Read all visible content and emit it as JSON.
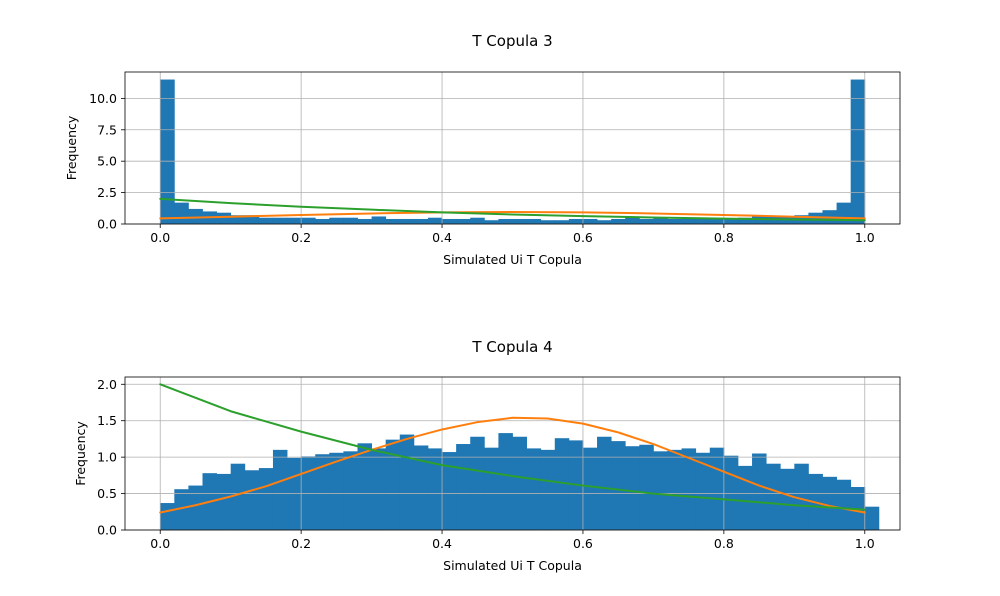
{
  "colors": {
    "bars": "#1f77b4",
    "orange_curve": "#ff7f0e",
    "green_curve": "#2ca02c",
    "grid": "#b0b0b0"
  },
  "chart_data": [
    {
      "type": "histogram",
      "title": "T Copula 3",
      "xlabel": "Simulated Ui T Copula",
      "ylabel": "Frequency",
      "xlim": [
        -0.05,
        1.05
      ],
      "ylim": [
        0,
        12.1
      ],
      "xticks": [
        0.0,
        0.2,
        0.4,
        0.6,
        0.8,
        1.0
      ],
      "xtick_labels": [
        "0.0",
        "0.2",
        "0.4",
        "0.6",
        "0.8",
        "1.0"
      ],
      "yticks": [
        0.0,
        2.5,
        5.0,
        7.5,
        10.0
      ],
      "ytick_labels": [
        "0.0",
        "2.5",
        "5.0",
        "7.5",
        "10.0"
      ],
      "grid": true,
      "bin_start": 0.0,
      "bin_width": 0.02,
      "values": [
        11.5,
        1.7,
        1.2,
        1.0,
        0.9,
        0.7,
        0.7,
        0.5,
        0.5,
        0.5,
        0.5,
        0.4,
        0.5,
        0.5,
        0.4,
        0.6,
        0.4,
        0.4,
        0.4,
        0.5,
        0.4,
        0.4,
        0.5,
        0.3,
        0.4,
        0.4,
        0.4,
        0.3,
        0.3,
        0.4,
        0.4,
        0.3,
        0.4,
        0.6,
        0.4,
        0.5,
        0.4,
        0.5,
        0.4,
        0.4,
        0.4,
        0.5,
        0.6,
        0.6,
        0.6,
        0.7,
        0.9,
        1.1,
        1.7,
        11.5
      ],
      "curves": [
        {
          "color_key": "orange_curve",
          "x": [
            0.0,
            0.1,
            0.2,
            0.3,
            0.4,
            0.5,
            0.6,
            0.7,
            0.8,
            0.9,
            1.0
          ],
          "y": [
            0.45,
            0.58,
            0.72,
            0.84,
            0.93,
            0.96,
            0.93,
            0.84,
            0.72,
            0.58,
            0.45
          ]
        },
        {
          "color_key": "green_curve",
          "x": [
            0.0,
            0.1,
            0.2,
            0.3,
            0.4,
            0.5,
            0.6,
            0.7,
            0.8,
            0.9,
            1.0
          ],
          "y": [
            2.0,
            1.66,
            1.37,
            1.14,
            0.93,
            0.76,
            0.63,
            0.52,
            0.43,
            0.36,
            0.3
          ]
        }
      ]
    },
    {
      "type": "histogram",
      "title": "T Copula 4",
      "xlabel": "Simulated Ui T Copula",
      "ylabel": "Frequency",
      "xlim": [
        -0.05,
        1.05
      ],
      "ylim": [
        0,
        2.1
      ],
      "xticks": [
        0.0,
        0.2,
        0.4,
        0.6,
        0.8,
        1.0
      ],
      "xtick_labels": [
        "0.0",
        "0.2",
        "0.4",
        "0.6",
        "0.8",
        "1.0"
      ],
      "yticks": [
        0.0,
        0.5,
        1.0,
        1.5,
        2.0
      ],
      "ytick_labels": [
        "0.0",
        "0.5",
        "1.0",
        "1.5",
        "2.0"
      ],
      "grid": true,
      "bin_start": 0.0,
      "bin_width": 0.02,
      "values": [
        0.37,
        0.56,
        0.61,
        0.78,
        0.77,
        0.91,
        0.82,
        0.85,
        1.1,
        0.99,
        1.01,
        1.04,
        1.06,
        1.08,
        1.19,
        1.12,
        1.24,
        1.31,
        1.16,
        1.12,
        1.07,
        1.18,
        1.28,
        1.13,
        1.33,
        1.28,
        1.12,
        1.1,
        1.26,
        1.23,
        1.13,
        1.28,
        1.22,
        1.15,
        1.17,
        1.08,
        1.1,
        1.12,
        1.06,
        1.13,
        1.02,
        0.88,
        1.05,
        0.91,
        0.84,
        0.91,
        0.77,
        0.73,
        0.69,
        0.59,
        0.32
      ],
      "curves": [
        {
          "color_key": "orange_curve",
          "x": [
            0.0,
            0.05,
            0.1,
            0.15,
            0.2,
            0.25,
            0.3,
            0.35,
            0.4,
            0.45,
            0.5,
            0.55,
            0.6,
            0.65,
            0.7,
            0.75,
            0.8,
            0.85,
            0.9,
            0.95,
            1.0
          ],
          "y": [
            0.24,
            0.34,
            0.46,
            0.6,
            0.77,
            0.94,
            1.1,
            1.25,
            1.38,
            1.48,
            1.54,
            1.53,
            1.46,
            1.34,
            1.18,
            0.99,
            0.8,
            0.61,
            0.45,
            0.33,
            0.24
          ]
        },
        {
          "color_key": "green_curve",
          "x": [
            0.0,
            0.1,
            0.2,
            0.3,
            0.4,
            0.5,
            0.6,
            0.7,
            0.8,
            0.9,
            1.0
          ],
          "y": [
            2.0,
            1.63,
            1.35,
            1.1,
            0.89,
            0.74,
            0.61,
            0.5,
            0.42,
            0.34,
            0.28
          ]
        }
      ]
    }
  ]
}
